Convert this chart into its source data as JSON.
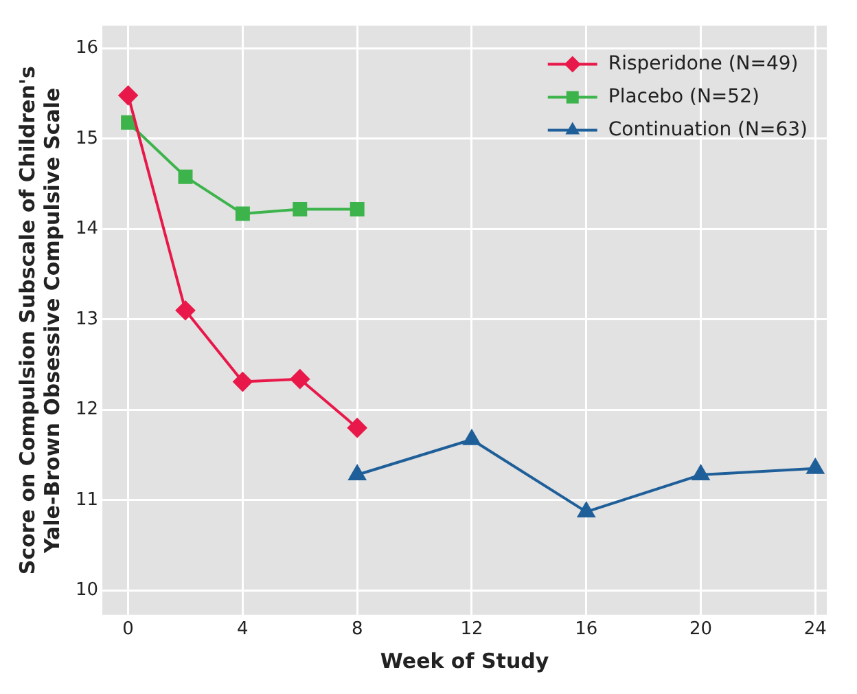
{
  "chart_data": {
    "type": "line",
    "xlabel": "Week of Study",
    "ylabel": "Score on Compulsion Subscale of Children's\nYale-Brown Obsessive Compulsive Scale",
    "series": [
      {
        "name": "Risperidone (N=49)",
        "color": "#e8194a",
        "marker": "diamond",
        "x": [
          0,
          2,
          4,
          6,
          8
        ],
        "values": [
          15.48,
          13.1,
          12.31,
          12.34,
          11.8
        ]
      },
      {
        "name": "Placebo (N=52)",
        "color": "#3cb44b",
        "marker": "square",
        "x": [
          0,
          2,
          4,
          6,
          8
        ],
        "values": [
          15.18,
          14.58,
          14.17,
          14.22,
          14.22
        ]
      },
      {
        "name": "Continuation (N=63)",
        "color": "#1f5f99",
        "marker": "triangle",
        "x": [
          8,
          12,
          16,
          20,
          24
        ],
        "values": [
          11.28,
          11.67,
          10.87,
          11.28,
          11.35
        ]
      }
    ],
    "xlim": [
      -0.9,
      24.4
    ],
    "xticks": [
      0,
      4,
      8,
      12,
      16,
      20,
      24
    ],
    "ylim": [
      9.73,
      16.25
    ],
    "yticks": [
      10,
      11,
      12,
      13,
      14,
      15,
      16
    ],
    "grid": true,
    "legend": "top right",
    "line_style": "solid"
  }
}
